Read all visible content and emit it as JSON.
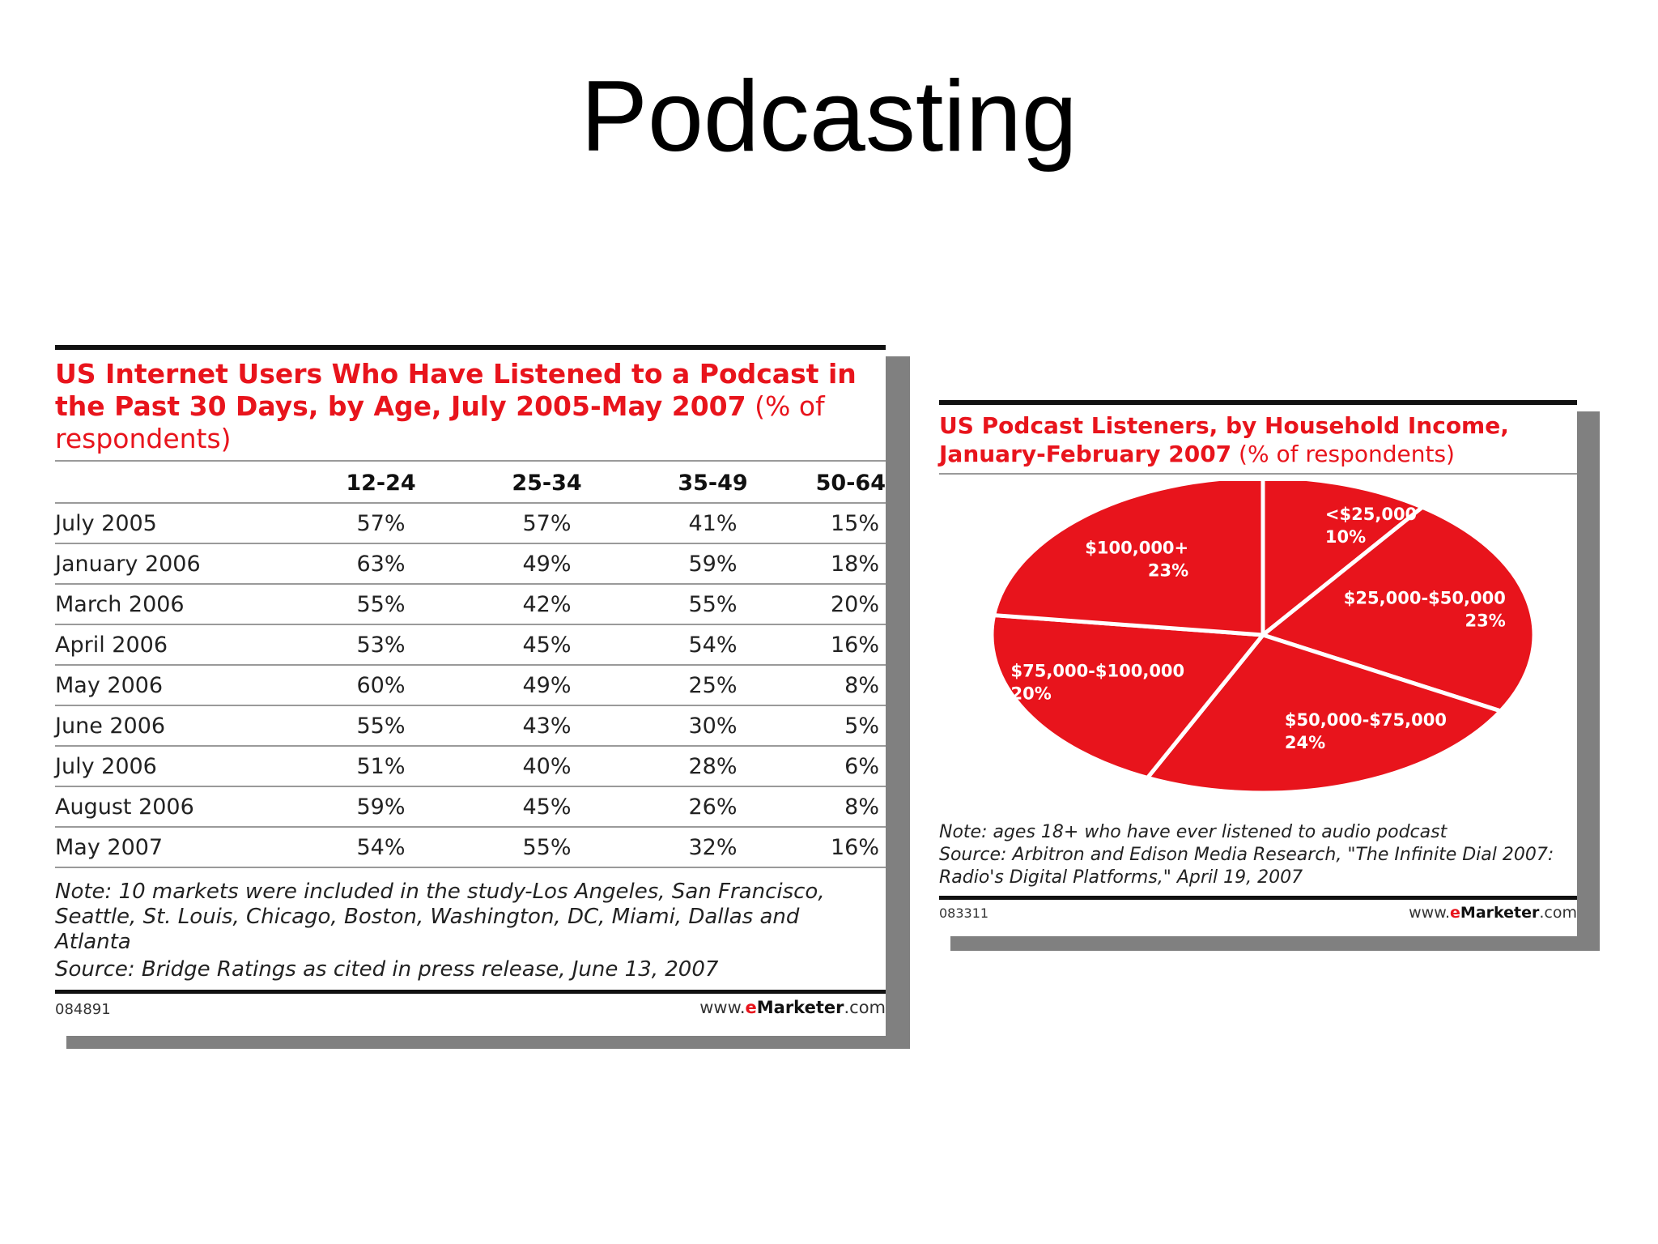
{
  "slide": {
    "title": "Podcasting"
  },
  "brand": {
    "prefix": "www.",
    "e": "e",
    "name": "Marketer",
    "suffix": ".com"
  },
  "colors": {
    "accent": "#e8141c",
    "shadow": "#808080",
    "slice_line": "#ffffff"
  },
  "table_chart": {
    "title": "US Internet Users Who Have Listened to a Podcast in the Past 30 Days, by Age, July 2005-May 2007",
    "title_suffix": " (% of respondents)",
    "note": "Note: 10 markets were included in the study-Los Angeles, San Francisco, Seattle, St. Louis, Chicago, Boston, Washington, DC, Miami, Dallas and Atlanta",
    "source": "Source: Bridge Ratings as cited in press release, June 13, 2007",
    "code": "084891"
  },
  "pie_chart": {
    "title": "US Podcast Listeners, by Household Income, January-February 2007",
    "title_suffix": " (% of respondents)",
    "note": "Note: ages 18+ who have ever listened to audio podcast",
    "source": "Source: Arbitron and Edison Media Research, \"The Infinite Dial 2007: Radio's Digital Platforms,\" April 19, 2007",
    "code": "083311"
  },
  "chart_data": [
    {
      "type": "table",
      "title": "US Internet Users Who Have Listened to a Podcast in the Past 30 Days, by Age, July 2005-May 2007 (% of respondents)",
      "columns": [
        "12-24",
        "25-34",
        "35-49",
        "50-64"
      ],
      "rows": [
        {
          "label": "July 2005",
          "values": [
            "57%",
            "57%",
            "41%",
            "15%"
          ]
        },
        {
          "label": "January 2006",
          "values": [
            "63%",
            "49%",
            "59%",
            "18%"
          ]
        },
        {
          "label": "March 2006",
          "values": [
            "55%",
            "42%",
            "55%",
            "20%"
          ]
        },
        {
          "label": "April 2006",
          "values": [
            "53%",
            "45%",
            "54%",
            "16%"
          ]
        },
        {
          "label": "May 2006",
          "values": [
            "60%",
            "49%",
            "25%",
            "8%"
          ]
        },
        {
          "label": "June 2006",
          "values": [
            "55%",
            "43%",
            "30%",
            "5%"
          ]
        },
        {
          "label": "July 2006",
          "values": [
            "51%",
            "40%",
            "28%",
            "6%"
          ]
        },
        {
          "label": "August 2006",
          "values": [
            "59%",
            "45%",
            "26%",
            "8%"
          ]
        },
        {
          "label": "May 2007",
          "values": [
            "54%",
            "55%",
            "32%",
            "16%"
          ]
        }
      ]
    },
    {
      "type": "pie",
      "title": "US Podcast Listeners, by Household Income, January-February 2007 (% of respondents)",
      "slices": [
        {
          "label": "<$25,000",
          "value": 10,
          "value_label": "10%"
        },
        {
          "label": "$25,000-$50,000",
          "value": 23,
          "value_label": "23%"
        },
        {
          "label": "$50,000-$75,000",
          "value": 24,
          "value_label": "24%"
        },
        {
          "label": "$75,000-$100,000",
          "value": 20,
          "value_label": "20%"
        },
        {
          "label": "$100,000+",
          "value": 23,
          "value_label": "23%"
        }
      ]
    }
  ]
}
